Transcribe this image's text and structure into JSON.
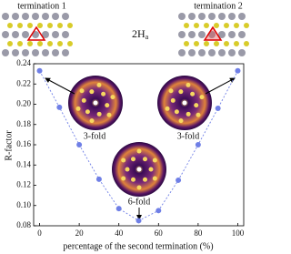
{
  "chart_data": {
    "type": "line",
    "title": "2H",
    "title_subscript": "a",
    "annotations": [
      "termination 1",
      "termination 2",
      "3-fold",
      "3-fold",
      "6-fold"
    ],
    "x_label": "percentage of the second termination (%)",
    "y_label": "R-factor",
    "x": [
      0,
      10,
      20,
      30,
      40,
      50,
      60,
      70,
      80,
      90,
      100
    ],
    "series": [
      {
        "color": "#6f7fe6",
        "values": [
          0.233,
          0.197,
          0.16,
          0.126,
          0.097,
          0.085,
          0.095,
          0.125,
          0.16,
          0.196,
          0.233
        ]
      }
    ],
    "xlim": [
      -3,
      103
    ],
    "xticks": [
      0,
      20,
      40,
      60,
      80,
      100
    ],
    "ylim": [
      0.08,
      0.24
    ],
    "yticks": [
      0.08,
      {
        "value": 0.1,
        "label": "0.10"
      },
      0.12,
      0.14,
      0.16,
      0.18,
      {
        "value": 0.2,
        "label": "0.20"
      },
      0.22,
      0.24
    ]
  }
}
